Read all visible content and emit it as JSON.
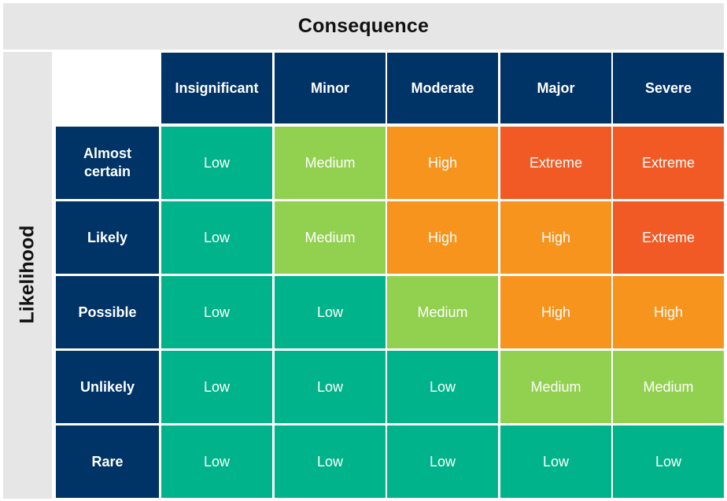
{
  "titles": {
    "consequence": "Consequence",
    "likelihood": "Likelihood"
  },
  "consequences": [
    "Insignificant",
    "Minor",
    "Moderate",
    "Major",
    "Severe"
  ],
  "likelihoods": [
    "Almost certain",
    "Likely",
    "Possible",
    "Unlikely",
    "Rare"
  ],
  "matrix": [
    [
      "Low",
      "Medium",
      "High",
      "Extreme",
      "Extreme"
    ],
    [
      "Low",
      "Medium",
      "High",
      "High",
      "Extreme"
    ],
    [
      "Low",
      "Low",
      "Medium",
      "High",
      "High"
    ],
    [
      "Low",
      "Low",
      "Low",
      "Medium",
      "Medium"
    ],
    [
      "Low",
      "Low",
      "Low",
      "Low",
      "Low"
    ]
  ],
  "colors": {
    "header_navy": "#003366",
    "band_gray": "#e6e6e6",
    "Low": "#00b38a",
    "Medium": "#92d050",
    "High": "#f7941d",
    "Extreme": "#f15a24"
  }
}
